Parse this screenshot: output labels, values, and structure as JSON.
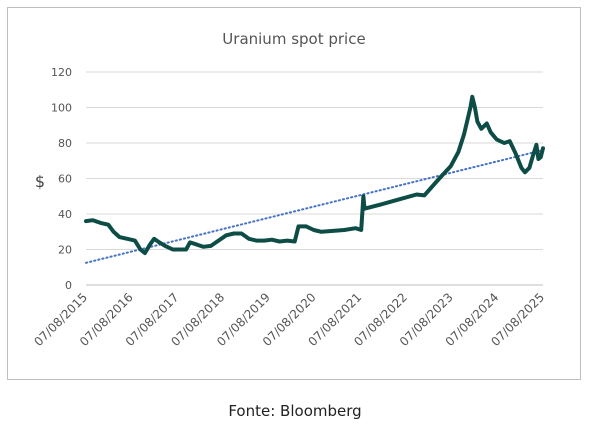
{
  "chart_data": {
    "type": "line",
    "title": "Uranium spot price",
    "ylabel": "$",
    "xlabel": "",
    "ylim": [
      0,
      120
    ],
    "y_ticks": [
      0,
      20,
      40,
      60,
      80,
      100,
      120
    ],
    "x_tick_labels": [
      "07/08/2015",
      "07/08/2016",
      "07/08/2017",
      "07/08/2018",
      "07/08/2019",
      "07/08/2020",
      "07/08/2021",
      "07/08/2022",
      "07/08/2023",
      "07/08/2024",
      "07/08/2025"
    ],
    "x_range": [
      "2015-08-07",
      "2025-08-07"
    ],
    "grid": "horizontal",
    "legend": "none",
    "series": [
      {
        "color": "#0d4d45",
        "points": [
          [
            "2015-08-07",
            36
          ],
          [
            "2015-10-01",
            36.5
          ],
          [
            "2015-12-01",
            35
          ],
          [
            "2016-02-01",
            34
          ],
          [
            "2016-03-15",
            30
          ],
          [
            "2016-05-01",
            27
          ],
          [
            "2016-07-01",
            26
          ],
          [
            "2016-09-01",
            25
          ],
          [
            "2016-10-15",
            20
          ],
          [
            "2016-11-20",
            18
          ],
          [
            "2017-01-01",
            23
          ],
          [
            "2017-02-01",
            26
          ],
          [
            "2017-03-15",
            24
          ],
          [
            "2017-05-01",
            22
          ],
          [
            "2017-07-01",
            20
          ],
          [
            "2017-09-01",
            20
          ],
          [
            "2017-10-15",
            20
          ],
          [
            "2017-11-15",
            24
          ],
          [
            "2018-01-01",
            23
          ],
          [
            "2018-03-01",
            21.5
          ],
          [
            "2018-05-01",
            22
          ],
          [
            "2018-07-01",
            25
          ],
          [
            "2018-09-01",
            28
          ],
          [
            "2018-11-01",
            29
          ],
          [
            "2019-01-01",
            29
          ],
          [
            "2019-03-01",
            26
          ],
          [
            "2019-05-01",
            25
          ],
          [
            "2019-07-01",
            25
          ],
          [
            "2019-09-01",
            25.5
          ],
          [
            "2019-11-01",
            24.5
          ],
          [
            "2020-01-01",
            25
          ],
          [
            "2020-03-01",
            24.5
          ],
          [
            "2020-04-01",
            33
          ],
          [
            "2020-06-01",
            33
          ],
          [
            "2020-08-01",
            31
          ],
          [
            "2020-10-01",
            30
          ],
          [
            "2021-01-01",
            30.5
          ],
          [
            "2021-04-01",
            31
          ],
          [
            "2021-07-01",
            32
          ],
          [
            "2021-08-15",
            31
          ],
          [
            "2021-09-01",
            50
          ],
          [
            "2021-09-10",
            43
          ],
          [
            "2022-01-01",
            45
          ],
          [
            "2022-06-01",
            48
          ],
          [
            "2022-11-01",
            51
          ],
          [
            "2023-01-01",
            50.5
          ],
          [
            "2023-05-01",
            60
          ],
          [
            "2023-08-01",
            67
          ],
          [
            "2023-10-01",
            75
          ],
          [
            "2023-11-15",
            85
          ],
          [
            "2024-01-05",
            100
          ],
          [
            "2024-01-20",
            106
          ],
          [
            "2024-02-10",
            100
          ],
          [
            "2024-03-01",
            92
          ],
          [
            "2024-04-01",
            88
          ],
          [
            "2024-05-15",
            91
          ],
          [
            "2024-06-15",
            86
          ],
          [
            "2024-08-01",
            82
          ],
          [
            "2024-10-01",
            80
          ],
          [
            "2024-11-15",
            81
          ],
          [
            "2025-01-01",
            74
          ],
          [
            "2025-02-15",
            66
          ],
          [
            "2025-03-15",
            63.5
          ],
          [
            "2025-04-20",
            66
          ],
          [
            "2025-05-15",
            72
          ],
          [
            "2025-06-15",
            79
          ],
          [
            "2025-07-01",
            71
          ],
          [
            "2025-07-20",
            72
          ],
          [
            "2025-08-07",
            77
          ]
        ]
      },
      {
        "style": "dotted-trend",
        "color": "#4472c4",
        "points": [
          [
            "2015-08-07",
            12.5
          ],
          [
            "2025-08-07",
            76
          ]
        ]
      }
    ]
  },
  "footer": {
    "source": "Fonte: Bloomberg"
  }
}
